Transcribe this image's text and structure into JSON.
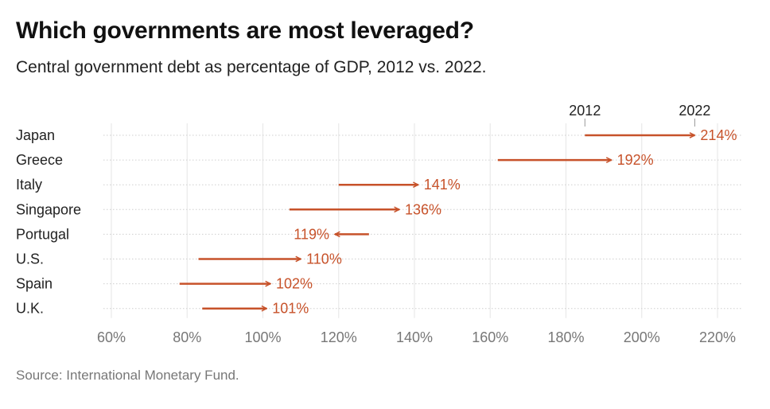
{
  "title": "Which governments are most leveraged?",
  "subtitle": "Central government debt as percentage of GDP, 2012 vs. 2022.",
  "source": "Source: International Monetary Fund.",
  "chart_data": {
    "type": "dumbbell-arrow",
    "color": "#c7522a",
    "legend": {
      "start_label": "2012",
      "end_label": "2022",
      "reference_category": "Japan"
    },
    "x_range": [
      60,
      220
    ],
    "x_ticks": [
      60,
      80,
      100,
      120,
      140,
      160,
      180,
      200,
      220
    ],
    "x_tick_labels": [
      "60%",
      "80%",
      "100%",
      "120%",
      "140%",
      "160%",
      "180%",
      "200%",
      "220%"
    ],
    "categories": [
      "Japan",
      "Greece",
      "Italy",
      "Singapore",
      "Portugal",
      "U.S.",
      "Spain",
      "U.K."
    ],
    "series": [
      {
        "name": "2012",
        "values": [
          185,
          162,
          120,
          107,
          128,
          83,
          78,
          84
        ]
      },
      {
        "name": "2022",
        "values": [
          214,
          192,
          141,
          136,
          119,
          110,
          102,
          101
        ]
      }
    ],
    "value_labels": [
      "214%",
      "192%",
      "141%",
      "136%",
      "119%",
      "110%",
      "102%",
      "101%"
    ]
  }
}
